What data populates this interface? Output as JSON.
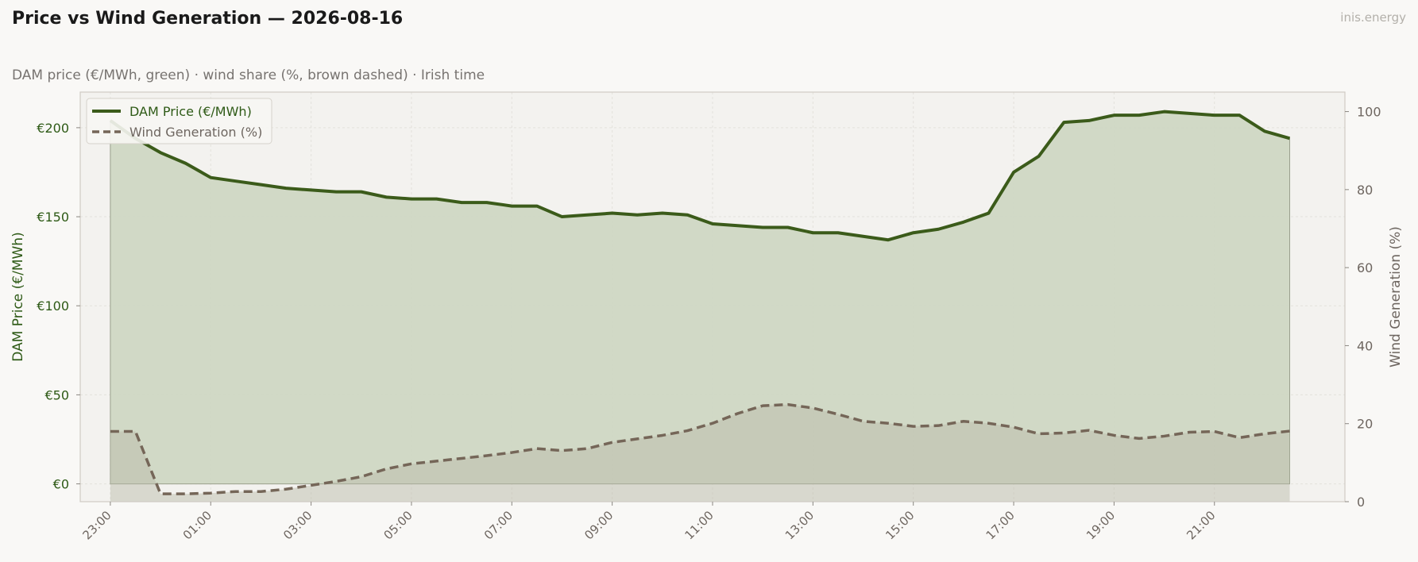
{
  "header": {
    "title": "Price vs Wind Generation — 2026-08-16",
    "brand": "inis.energy",
    "subtitle": "DAM price (€/MWh, green)  ·  wind share (%, brown dashed)  ·  Irish time"
  },
  "colors": {
    "price": "#3b5b1a",
    "price_fill": "#cfd7c3",
    "wind": "#756658",
    "wind_fill": "#b9b8a7",
    "plot_bg": "#f3f2ef",
    "page_bg": "#f9f8f6",
    "grid": "#e3e1dc"
  },
  "chart_data": {
    "type": "line",
    "x_tick_labels": [
      "23:00",
      "01:00",
      "03:00",
      "05:00",
      "07:00",
      "09:00",
      "11:00",
      "13:00",
      "15:00",
      "17:00",
      "19:00",
      "21:00"
    ],
    "x_start": "23:00",
    "x_interval_minutes": 30,
    "x_range_slots": [
      -1.2,
      49.2
    ],
    "grid": true,
    "legend": "top-left",
    "y_left": {
      "label": "DAM Price (€/MWh)",
      "range": [
        -10,
        220
      ],
      "ticks": [
        0,
        50,
        100,
        150,
        200
      ],
      "tick_labels": [
        "€0",
        "€50",
        "€100",
        "€150",
        "€200"
      ]
    },
    "y_right": {
      "label": "Wind Generation (%)",
      "range": [
        0,
        105
      ],
      "ticks": [
        0,
        20,
        40,
        60,
        80,
        100
      ],
      "tick_labels": [
        "0",
        "20",
        "40",
        "60",
        "80",
        "100"
      ]
    },
    "series": [
      {
        "name": "DAM Price (€/MWh)",
        "axis": "left",
        "style": "solid",
        "values": [
          204,
          194,
          186,
          180,
          172,
          170,
          168,
          166,
          165,
          164,
          164,
          161,
          160,
          160,
          158,
          158,
          156,
          156,
          150,
          151,
          152,
          151,
          152,
          151,
          146,
          145,
          144,
          144,
          141,
          141,
          139,
          137,
          141,
          143,
          147,
          152,
          175,
          184,
          203,
          204,
          207,
          207,
          209,
          208,
          207,
          207,
          198,
          194
        ]
      },
      {
        "name": "Wind Generation (%)",
        "axis": "right",
        "style": "dashed",
        "values": [
          18,
          18,
          2,
          2,
          2.2,
          2.6,
          2.6,
          3.2,
          4.2,
          5.2,
          6.4,
          8.4,
          9.7,
          10.4,
          11.1,
          11.8,
          12.6,
          13.6,
          13.1,
          13.6,
          15.2,
          16.1,
          17.0,
          18.2,
          20.1,
          22.6,
          24.6,
          24.9,
          24.0,
          22.4,
          20.6,
          20.1,
          19.3,
          19.5,
          20.6,
          20.1,
          19.1,
          17.4,
          17.6,
          18.3,
          17.0,
          16.2,
          16.8,
          17.8,
          18.0,
          16.4,
          17.4,
          18.1
        ]
      }
    ]
  }
}
